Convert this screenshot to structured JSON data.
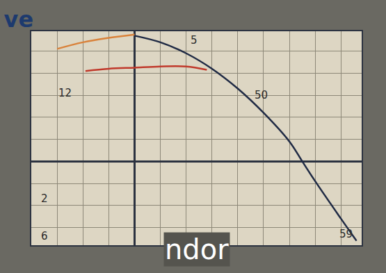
{
  "chart_data": {
    "type": "line",
    "title": "ve",
    "series": [
      {
        "color": "#1f2a44",
        "x": [
          0,
          1,
          2,
          3,
          4,
          5,
          6,
          6.5,
          7,
          8,
          8.6
        ],
        "values": [
          5.7,
          5.4,
          4.9,
          4.2,
          3.3,
          2.2,
          0.9,
          0,
          -0.9,
          -2.6,
          -3.6
        ]
      },
      {
        "color": "#c0392b",
        "x": [
          -1.9,
          -1,
          0,
          1,
          2,
          2.8
        ],
        "values": [
          4.1,
          4.2,
          4.25,
          4.3,
          4.3,
          4.15
        ]
      },
      {
        "color": "#d9823b",
        "x": [
          -3,
          -2,
          -1,
          0
        ],
        "values": [
          5.1,
          5.4,
          5.6,
          5.75
        ]
      }
    ],
    "xlim": [
      -4,
      8.8
    ],
    "xticks": [
      -3,
      -2,
      -1,
      0,
      1,
      2,
      3,
      4,
      5,
      6,
      7,
      8
    ],
    "ylim": [
      -3.8,
      5.9
    ],
    "yticks": [
      -3,
      -2,
      -1,
      0,
      1,
      2,
      3,
      4,
      5
    ],
    "grid": true,
    "tick_labels": false,
    "annotations": [
      {
        "text": "5",
        "x": 2.3,
        "y": 5.5
      },
      {
        "text": "12",
        "x": -2.7,
        "y": 3.1
      },
      {
        "text": "50",
        "x": 4.9,
        "y": 3.0
      },
      {
        "text": "2",
        "x": -3.5,
        "y": -1.7
      },
      {
        "text": "6",
        "x": -3.5,
        "y": -3.4
      },
      {
        "text": "59",
        "x": 8.2,
        "y": -3.3
      }
    ],
    "caption": "ndor"
  }
}
